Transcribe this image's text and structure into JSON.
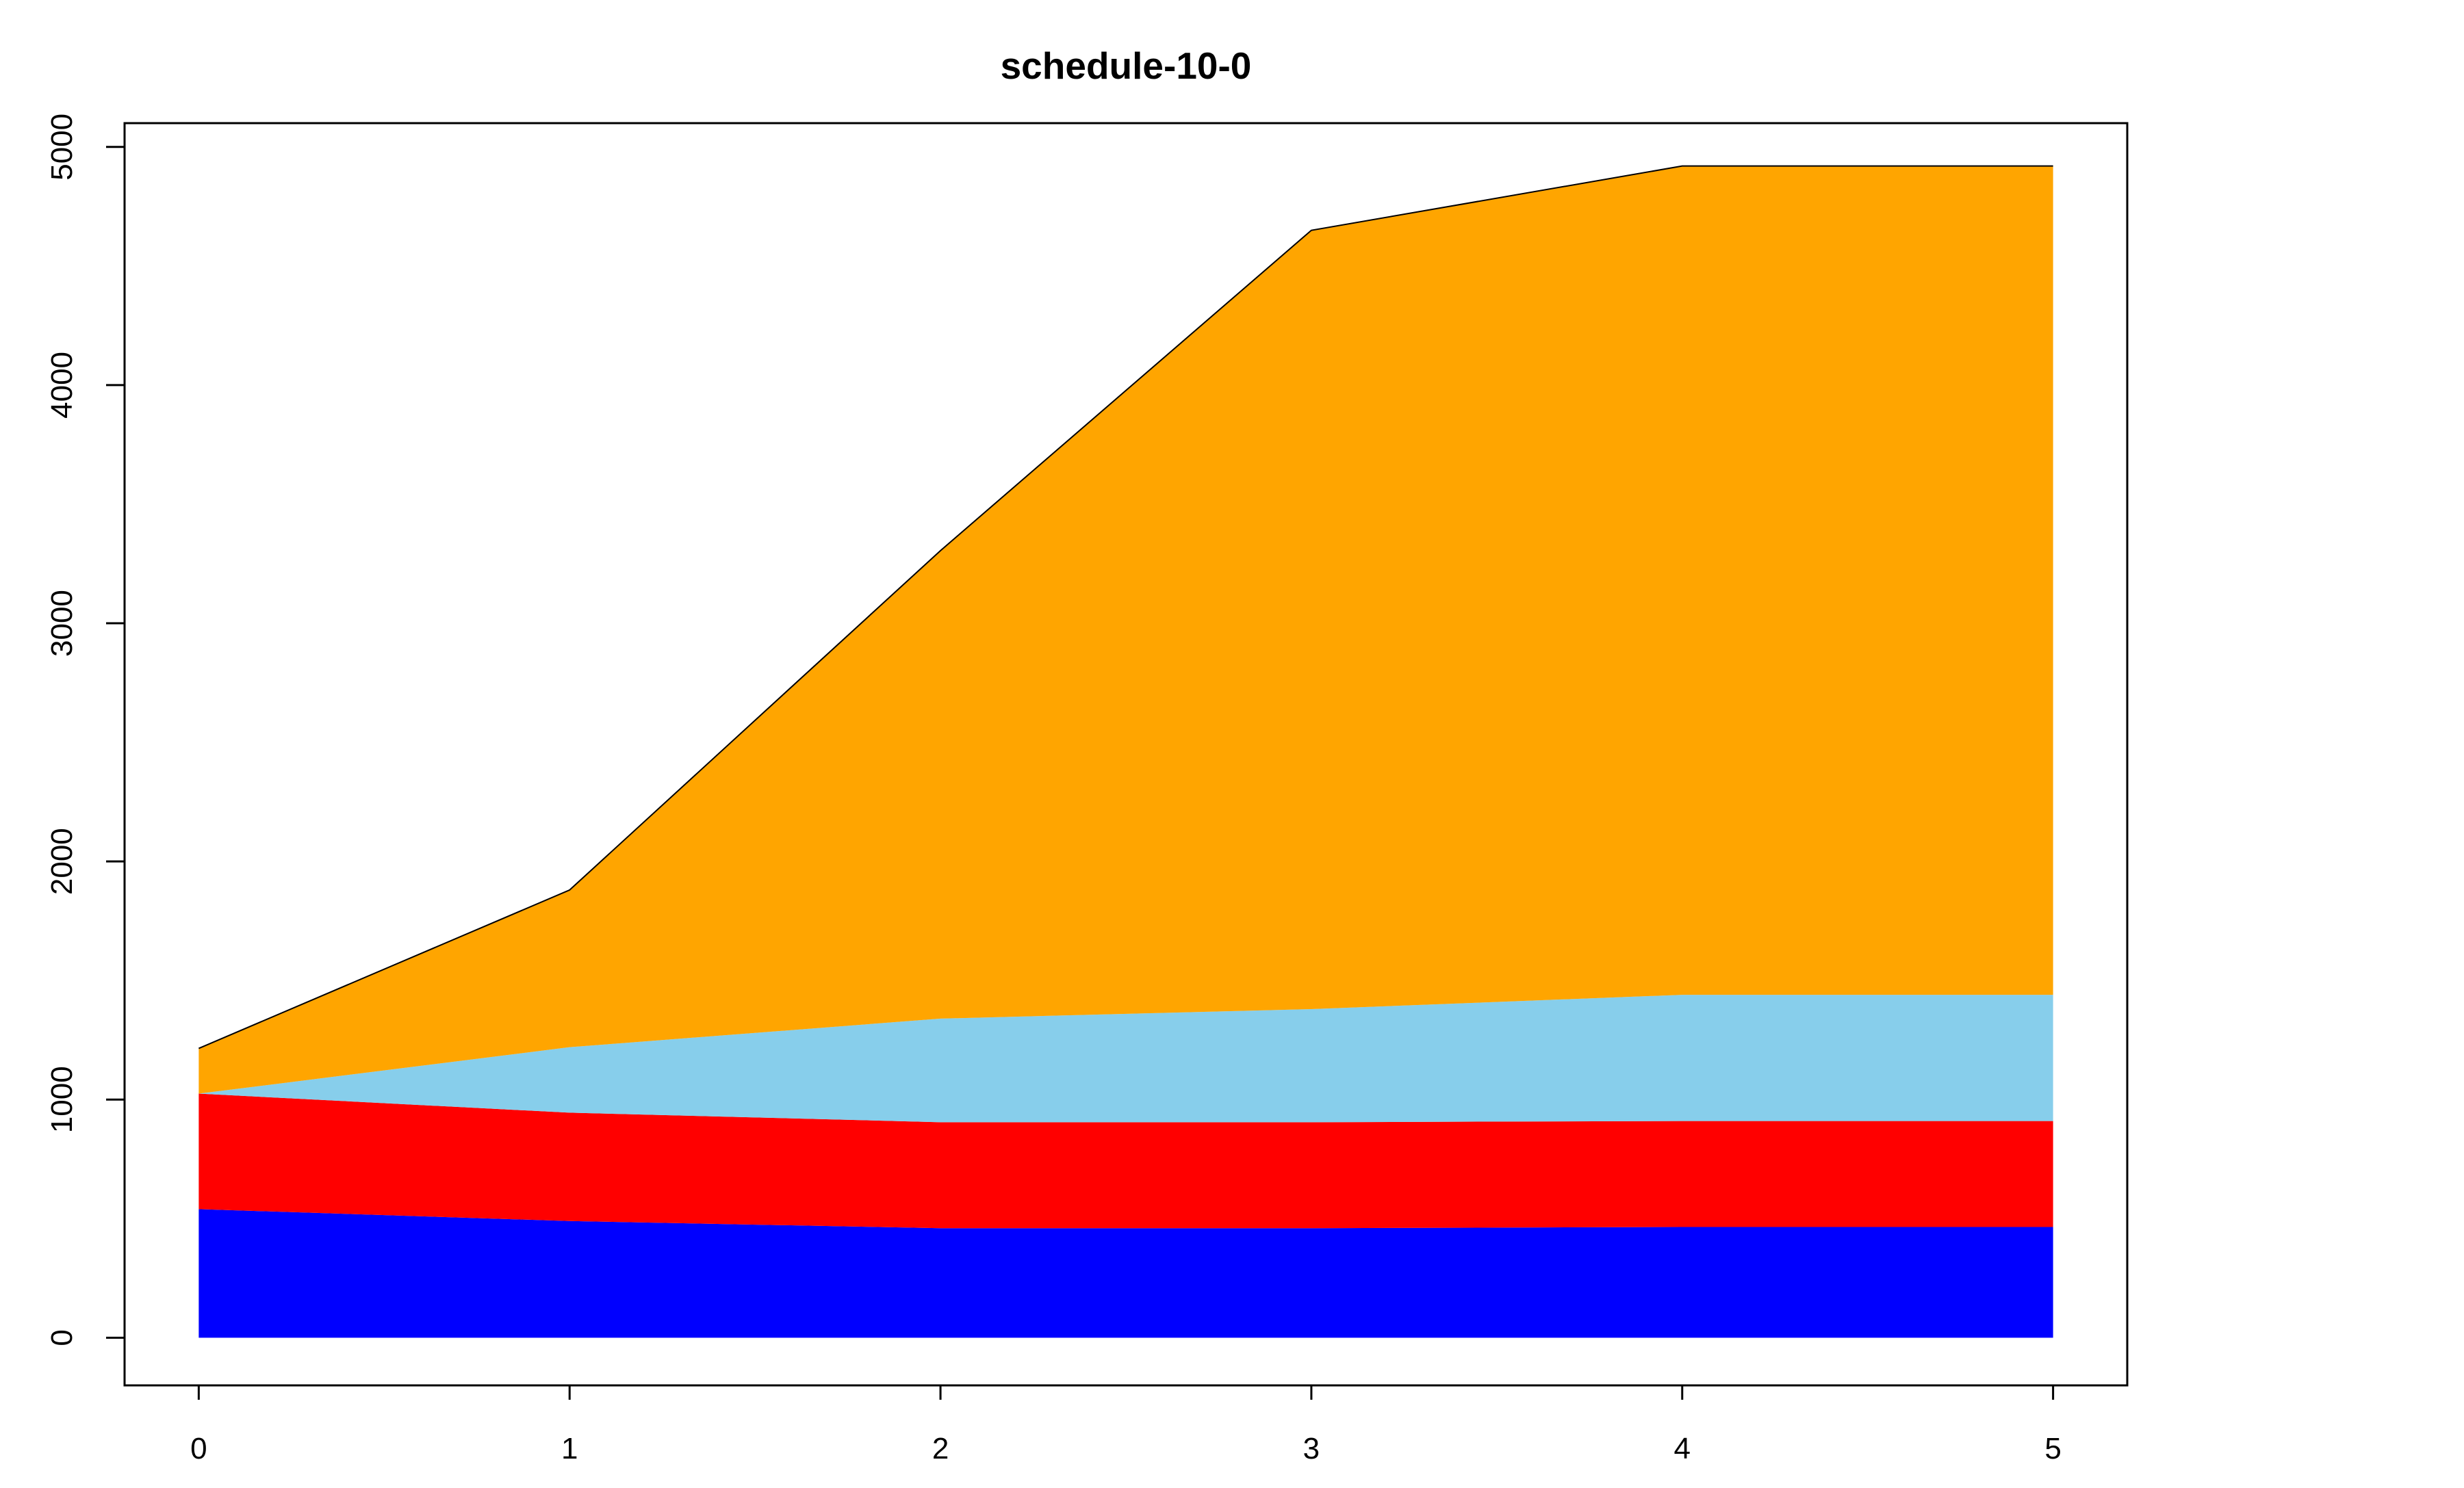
{
  "chart_data": {
    "type": "area",
    "stacked": true,
    "title": "schedule-10-0",
    "xlabel": "",
    "ylabel": "",
    "x": [
      0,
      1,
      2,
      3,
      4,
      5
    ],
    "xlim": [
      -0.2,
      5.2
    ],
    "ylim": [
      -200,
      5100
    ],
    "x_ticks": [
      0,
      1,
      2,
      3,
      4,
      5
    ],
    "y_ticks": [
      0,
      1000,
      2000,
      3000,
      4000,
      5000
    ],
    "series": [
      {
        "color": "#0000ff",
        "values": [
          540,
          490,
          460,
          460,
          465,
          465
        ]
      },
      {
        "color": "#ff0000",
        "values": [
          485,
          455,
          445,
          445,
          445,
          445
        ]
      },
      {
        "color": "#87ceeb",
        "values": [
          0,
          275,
          435,
          475,
          530,
          530
        ]
      },
      {
        "color": "#ffa500",
        "values": [
          190,
          660,
          1965,
          3270,
          3480,
          3480
        ]
      }
    ],
    "grid": false,
    "legend": "none"
  }
}
